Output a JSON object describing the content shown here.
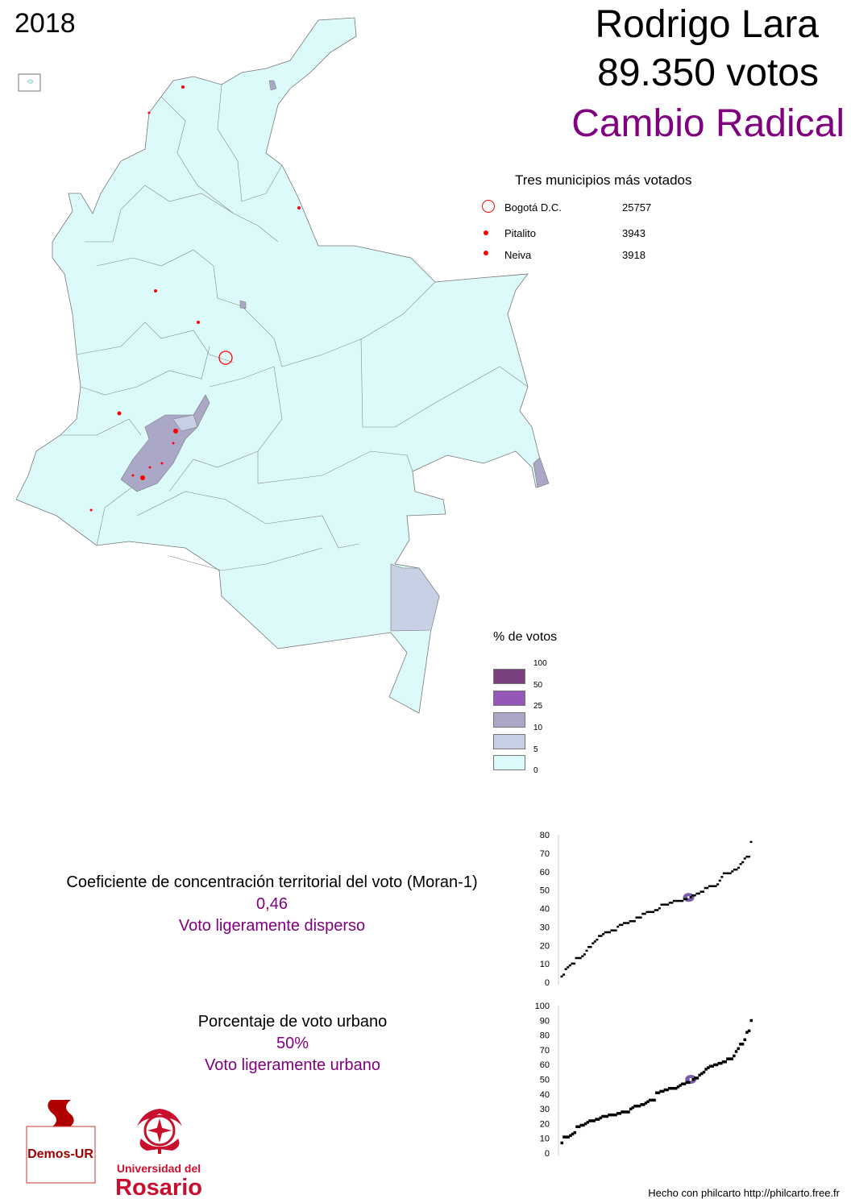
{
  "year": "2018",
  "candidate": {
    "name": "Rodrigo Lara",
    "votes": "89.350 votos",
    "party": "Cambio Radical",
    "party_color": "#800080"
  },
  "top_municipalities": {
    "title": "Tres municipios más votados",
    "items": [
      {
        "name": "Bogotá D.C.",
        "votes": "25757",
        "marker": "large-hollow-circle"
      },
      {
        "name": "Pitalito",
        "votes": "3943",
        "marker": "small-dot"
      },
      {
        "name": "Neiva",
        "votes": "3918",
        "marker": "small-dot"
      }
    ]
  },
  "legend": {
    "title": "% de votos",
    "breaks": [
      "100",
      "50",
      "25",
      "10",
      "5",
      "0"
    ],
    "colors": [
      "#7a3f7e",
      "#9558b8",
      "#aaa8c6",
      "#c8d0e6",
      "#dcfafa"
    ]
  },
  "moran": {
    "label": "Coeficiente de concentración territorial del voto (Moran-1)",
    "value": "0,46",
    "description": "Voto ligeramente disperso"
  },
  "urban": {
    "label": "Porcentaje de voto urbano",
    "value": "50%",
    "description": "Voto ligeramente urbano"
  },
  "logos": {
    "demos": "Demos-UR",
    "rosario_line1": "Universidad del",
    "rosario_line2": "Rosario"
  },
  "credit": "Hecho con philcarto http://philcarto.free.fr",
  "chart_data": [
    {
      "type": "scatter",
      "title": "",
      "xlabel": "",
      "ylabel": "",
      "ylim": [
        0,
        80
      ],
      "yticks": [
        "0",
        "10",
        "20",
        "30",
        "40",
        "50",
        "60",
        "70",
        "80"
      ],
      "highlight": 46,
      "highlight_color": "#7b5aa6",
      "values": [
        3,
        4,
        7,
        8,
        9,
        10,
        10,
        13,
        13,
        13,
        14,
        15,
        17,
        19,
        19,
        21,
        22,
        23,
        25,
        25,
        26,
        27,
        27,
        27,
        28,
        28,
        28,
        30,
        31,
        31,
        32,
        32,
        32,
        33,
        33,
        33,
        35,
        35,
        35,
        37,
        37,
        38,
        38,
        38,
        38,
        39,
        39,
        40,
        42,
        42,
        42,
        42,
        43,
        43,
        44,
        44,
        44,
        44,
        44,
        45,
        45,
        46,
        46,
        47,
        47,
        48,
        48,
        49,
        49,
        51,
        51,
        52,
        52,
        52,
        52,
        53,
        55,
        57,
        59,
        59,
        59,
        59,
        60,
        61,
        61,
        62,
        64,
        65,
        67,
        68,
        68,
        76
      ]
    },
    {
      "type": "scatter",
      "title": "",
      "xlabel": "",
      "ylabel": "",
      "ylim": [
        0,
        100
      ],
      "yticks": [
        "0",
        "10",
        "20",
        "30",
        "40",
        "50",
        "60",
        "70",
        "80",
        "90",
        "100"
      ],
      "highlight": 50,
      "highlight_color": "#7b5aa6",
      "values": [
        7,
        11,
        11,
        11,
        12,
        13,
        14,
        18,
        18,
        19,
        19,
        20,
        21,
        22,
        22,
        22,
        23,
        23,
        24,
        25,
        25,
        25,
        26,
        26,
        26,
        26,
        27,
        27,
        28,
        28,
        28,
        28,
        30,
        31,
        32,
        32,
        32,
        33,
        33,
        34,
        35,
        36,
        36,
        36,
        41,
        41,
        42,
        42,
        43,
        43,
        44,
        44,
        44,
        44,
        45,
        46,
        47,
        47,
        48,
        48,
        50,
        50,
        51,
        51,
        53,
        54,
        55,
        57,
        58,
        59,
        59,
        60,
        60,
        61,
        61,
        62,
        62,
        64,
        64,
        64,
        66,
        69,
        71,
        74,
        74,
        77,
        82,
        83,
        90
      ]
    }
  ]
}
